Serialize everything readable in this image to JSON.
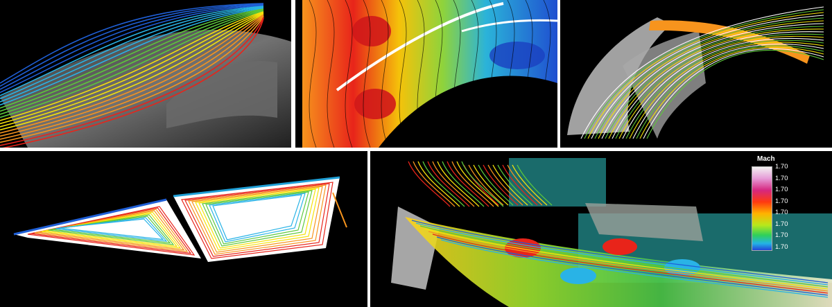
{
  "legend": {
    "title": "Mach",
    "labels": [
      "1.70",
      "1.70",
      "1.70",
      "1.70",
      "1.70",
      "1.70",
      "1.70",
      "1.70"
    ]
  },
  "palette": {
    "red": "#e8241a",
    "orange": "#f7941d",
    "yellow": "#f5e10a",
    "green": "#5cc83b",
    "blue": "#1f5fd6",
    "teal": "#1a6b6b",
    "grey": "#b8b8b8"
  }
}
